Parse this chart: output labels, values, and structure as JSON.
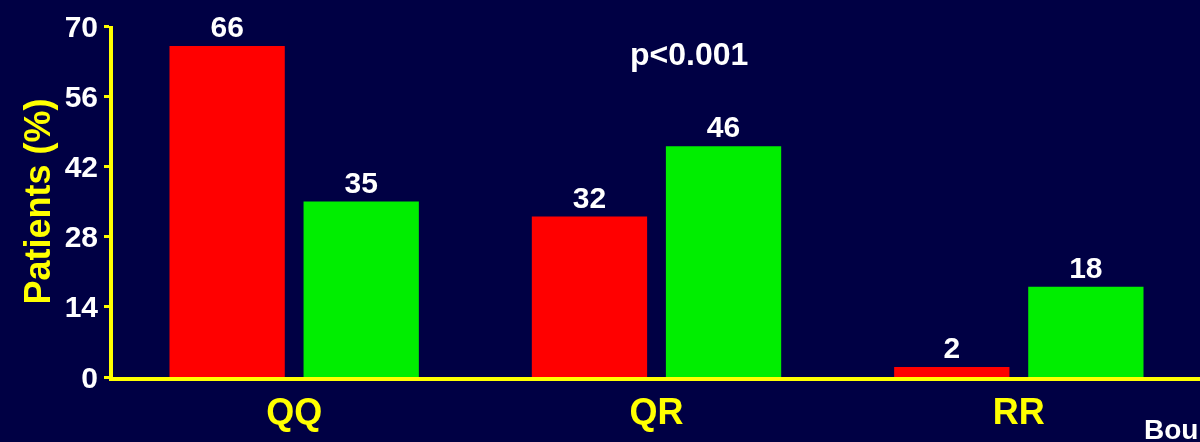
{
  "chart_data": {
    "type": "bar",
    "ylabel": "Patients (%)",
    "categories": [
      "QQ",
      "QR",
      "RR"
    ],
    "series": [
      {
        "color": "#ff0000",
        "values": [
          66,
          32,
          2
        ]
      },
      {
        "color": "#00ee00",
        "values": [
          35,
          46,
          18
        ]
      }
    ],
    "ylim": [
      0,
      70
    ],
    "yticks": [
      0,
      14,
      28,
      42,
      56,
      70
    ],
    "data_labels": true,
    "grid": false,
    "annotations": [
      "p<0.001",
      "Bou"
    ]
  }
}
